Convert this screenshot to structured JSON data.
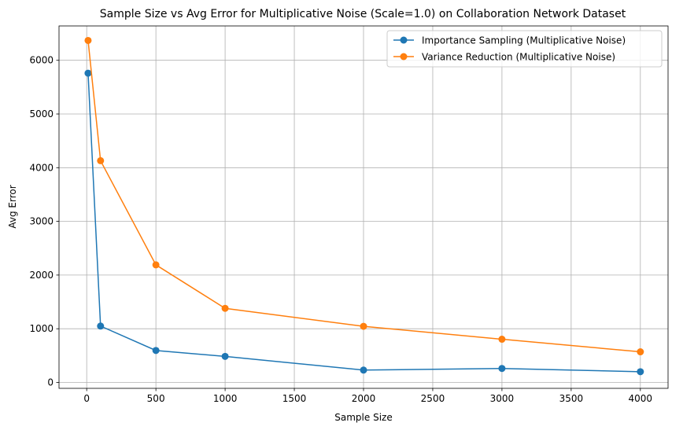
{
  "chart_data": {
    "type": "line",
    "title": "Sample Size vs Avg Error for Multiplicative Noise (Scale=1.0) on Collaboration Network Dataset",
    "xlabel": "Sample Size",
    "ylabel": "Avg Error",
    "xlim": [
      -200,
      4200
    ],
    "ylim": [
      -110,
      6640
    ],
    "xticks": [
      0,
      500,
      1000,
      1500,
      2000,
      2500,
      3000,
      3500,
      4000
    ],
    "yticks": [
      0,
      1000,
      2000,
      3000,
      4000,
      5000,
      6000
    ],
    "grid": true,
    "legend_position": "top-right",
    "x": [
      10,
      100,
      500,
      1000,
      2000,
      3000,
      4000
    ],
    "series": [
      {
        "name": "Importance Sampling (Multiplicative Noise)",
        "color": "#1f77b4",
        "values": [
          5760,
          1050,
          595,
          485,
          230,
          260,
          200
        ]
      },
      {
        "name": "Variance Reduction (Multiplicative Noise)",
        "color": "#ff7f0e",
        "values": [
          6370,
          4130,
          2190,
          1380,
          1045,
          805,
          570
        ]
      }
    ]
  }
}
